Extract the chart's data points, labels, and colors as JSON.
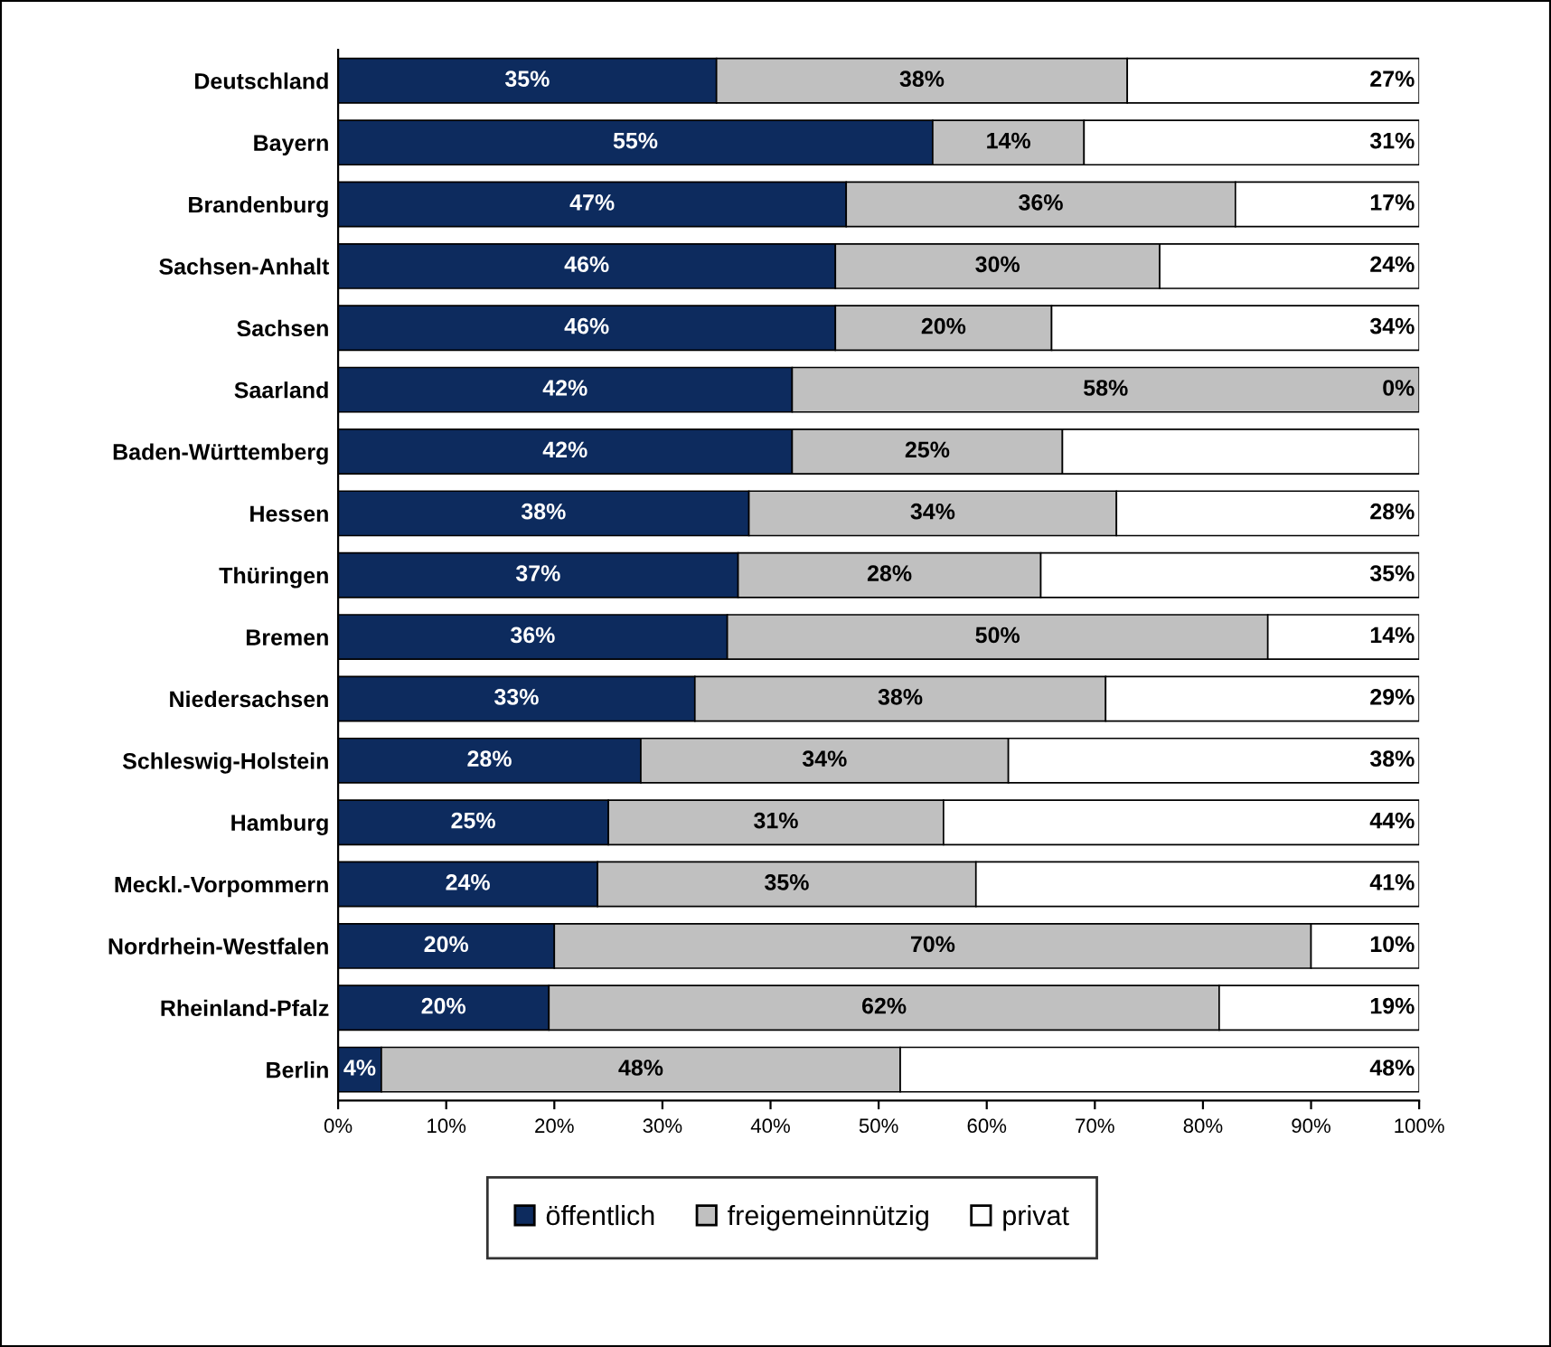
{
  "chart_data": {
    "type": "bar",
    "orientation": "horizontal",
    "stacked": true,
    "categories": [
      "Deutschland",
      "Bayern",
      "Brandenburg",
      "Sachsen-Anhalt",
      "Sachsen",
      "Saarland",
      "Baden-Württemberg",
      "Hessen",
      "Thüringen",
      "Bremen",
      "Niedersachsen",
      "Schleswig-Holstein",
      "Hamburg",
      "Meckl.-Vorpommern",
      "Nordrhein-Westfalen",
      "Rheinland-Pfalz",
      "Berlin"
    ],
    "series": [
      {
        "name": "öffentlich",
        "color": "#0d2b5e",
        "values": [
          35,
          55,
          47,
          46,
          46,
          42,
          42,
          38,
          37,
          36,
          33,
          28,
          25,
          24,
          20,
          19.5,
          4
        ],
        "value_labels": [
          "35%",
          "55%",
          "47%",
          "46%",
          "46%",
          "42%",
          "42%",
          "38%",
          "37%",
          "36%",
          "33%",
          "28%",
          "25%",
          "24%",
          "20%",
          "20%",
          "4%"
        ]
      },
      {
        "name": "freigemeinnützig",
        "color": "#c0c0c0",
        "values": [
          38,
          14,
          36,
          30,
          20,
          58,
          25,
          34,
          28,
          50,
          38,
          34,
          31,
          35,
          70,
          62,
          48
        ],
        "value_labels": [
          "38%",
          "14%",
          "36%",
          "30%",
          "20%",
          "58%",
          "25%",
          "34%",
          "28%",
          "50%",
          "38%",
          "34%",
          "31%",
          "35%",
          "70%",
          "62%",
          "48%"
        ]
      },
      {
        "name": "privat",
        "color": "#ffffff",
        "values": [
          27,
          31,
          17,
          24,
          34,
          0,
          33,
          28,
          35,
          14,
          29,
          38,
          44,
          41,
          10,
          18.5,
          48
        ],
        "value_labels": [
          "27%",
          "31%",
          "17%",
          "24%",
          "34%",
          "0%",
          null,
          "28%",
          "35%",
          "14%",
          "29%",
          "38%",
          "44%",
          "41%",
          "10%",
          "19%",
          "48%"
        ]
      }
    ],
    "xlim": [
      0,
      100
    ],
    "xticks": [
      {
        "value": 0,
        "label": "0%"
      },
      {
        "value": 10,
        "label": "10%"
      },
      {
        "value": 20,
        "label": "20%"
      },
      {
        "value": 30,
        "label": "30%"
      },
      {
        "value": 40,
        "label": "40%"
      },
      {
        "value": 50,
        "label": "50%"
      },
      {
        "value": 60,
        "label": "60%"
      },
      {
        "value": 70,
        "label": "70%"
      },
      {
        "value": 80,
        "label": "80%"
      },
      {
        "value": 90,
        "label": "90%"
      },
      {
        "value": 100,
        "label": "100%"
      }
    ],
    "grid": false,
    "legend": "bottom"
  }
}
